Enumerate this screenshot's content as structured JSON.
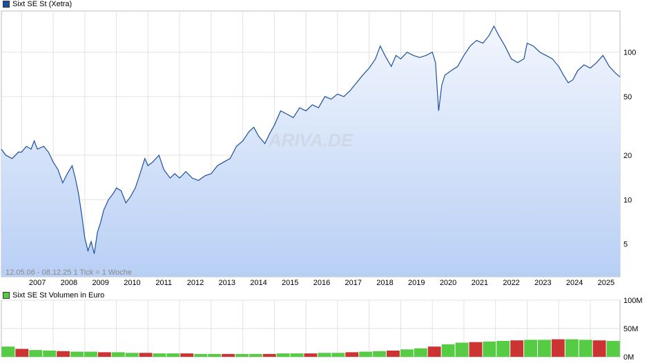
{
  "chart_data": [
    {
      "type": "line",
      "legend": "Sixt SE St (Xetra)",
      "scale": "log",
      "ylim": [
        3,
        190
      ],
      "y_ticks": [
        5,
        10,
        20,
        50,
        100
      ],
      "x_ticks": [
        "2007",
        "2008",
        "2009",
        "2010",
        "2011",
        "2012",
        "2013",
        "2014",
        "2015",
        "2016",
        "2017",
        "2018",
        "2019",
        "2020",
        "2021",
        "2022",
        "2023",
        "2024",
        "2025"
      ],
      "info": "12.05.06 - 08.12.25    1 Tick = 1 Woche",
      "watermark": "ARIVA.DE",
      "line_color": "#1c4fa0",
      "fill_top_color": "#f2f6fd",
      "fill_bottom_color": "#b8cff5",
      "points": [
        [
          2006.36,
          22
        ],
        [
          2006.5,
          20
        ],
        [
          2006.7,
          19
        ],
        [
          2006.9,
          21
        ],
        [
          2007.0,
          21
        ],
        [
          2007.15,
          23
        ],
        [
          2007.3,
          22
        ],
        [
          2007.4,
          25
        ],
        [
          2007.5,
          22
        ],
        [
          2007.7,
          23
        ],
        [
          2007.85,
          21
        ],
        [
          2008.0,
          18
        ],
        [
          2008.15,
          16
        ],
        [
          2008.3,
          13
        ],
        [
          2008.45,
          15
        ],
        [
          2008.6,
          17
        ],
        [
          2008.7,
          14
        ],
        [
          2008.8,
          11
        ],
        [
          2008.9,
          8
        ],
        [
          2009.0,
          5.5
        ],
        [
          2009.1,
          4.5
        ],
        [
          2009.2,
          5.2
        ],
        [
          2009.3,
          4.3
        ],
        [
          2009.4,
          6
        ],
        [
          2009.5,
          7
        ],
        [
          2009.6,
          8.5
        ],
        [
          2009.75,
          10
        ],
        [
          2009.9,
          11
        ],
        [
          2010.0,
          12
        ],
        [
          2010.15,
          11.5
        ],
        [
          2010.3,
          9.5
        ],
        [
          2010.45,
          10.5
        ],
        [
          2010.6,
          12
        ],
        [
          2010.75,
          15
        ],
        [
          2010.9,
          19
        ],
        [
          2011.0,
          17
        ],
        [
          2011.15,
          18
        ],
        [
          2011.35,
          20
        ],
        [
          2011.5,
          16
        ],
        [
          2011.7,
          14
        ],
        [
          2011.85,
          15
        ],
        [
          2012.0,
          14
        ],
        [
          2012.2,
          15.5
        ],
        [
          2012.4,
          14
        ],
        [
          2012.6,
          13.5
        ],
        [
          2012.8,
          14.5
        ],
        [
          2013.0,
          15
        ],
        [
          2013.2,
          17
        ],
        [
          2013.4,
          18
        ],
        [
          2013.6,
          19
        ],
        [
          2013.8,
          23
        ],
        [
          2014.0,
          25
        ],
        [
          2014.2,
          29
        ],
        [
          2014.35,
          31
        ],
        [
          2014.5,
          27
        ],
        [
          2014.7,
          24
        ],
        [
          2014.85,
          28
        ],
        [
          2015.0,
          32
        ],
        [
          2015.2,
          40
        ],
        [
          2015.4,
          38
        ],
        [
          2015.6,
          36
        ],
        [
          2015.8,
          42
        ],
        [
          2016.0,
          40
        ],
        [
          2016.2,
          44
        ],
        [
          2016.4,
          42
        ],
        [
          2016.6,
          50
        ],
        [
          2016.8,
          48
        ],
        [
          2017.0,
          52
        ],
        [
          2017.2,
          50
        ],
        [
          2017.4,
          55
        ],
        [
          2017.6,
          62
        ],
        [
          2017.8,
          70
        ],
        [
          2018.0,
          78
        ],
        [
          2018.2,
          90
        ],
        [
          2018.35,
          110
        ],
        [
          2018.5,
          95
        ],
        [
          2018.7,
          80
        ],
        [
          2018.85,
          95
        ],
        [
          2019.0,
          90
        ],
        [
          2019.2,
          100
        ],
        [
          2019.4,
          95
        ],
        [
          2019.6,
          92
        ],
        [
          2019.8,
          95
        ],
        [
          2020.0,
          100
        ],
        [
          2020.1,
          85
        ],
        [
          2020.2,
          40
        ],
        [
          2020.3,
          60
        ],
        [
          2020.4,
          70
        ],
        [
          2020.6,
          75
        ],
        [
          2020.8,
          80
        ],
        [
          2021.0,
          95
        ],
        [
          2021.2,
          110
        ],
        [
          2021.4,
          120
        ],
        [
          2021.6,
          115
        ],
        [
          2021.8,
          130
        ],
        [
          2021.95,
          150
        ],
        [
          2022.1,
          130
        ],
        [
          2022.3,
          110
        ],
        [
          2022.5,
          90
        ],
        [
          2022.7,
          85
        ],
        [
          2022.9,
          90
        ],
        [
          2023.0,
          115
        ],
        [
          2023.2,
          110
        ],
        [
          2023.4,
          100
        ],
        [
          2023.6,
          95
        ],
        [
          2023.8,
          90
        ],
        [
          2024.0,
          80
        ],
        [
          2024.15,
          70
        ],
        [
          2024.3,
          62
        ],
        [
          2024.45,
          65
        ],
        [
          2024.6,
          75
        ],
        [
          2024.8,
          82
        ],
        [
          2025.0,
          78
        ],
        [
          2025.2,
          85
        ],
        [
          2025.4,
          95
        ],
        [
          2025.6,
          80
        ],
        [
          2025.8,
          72
        ],
        [
          2025.94,
          68
        ]
      ]
    },
    {
      "type": "bar",
      "legend": "Sixt SE St Volumen in Euro",
      "ylim": [
        0,
        100
      ],
      "y_ticks": [
        "100M",
        "50M",
        "0M"
      ],
      "colors": {
        "up": "#55cc44",
        "down": "#cc3333"
      },
      "values": [
        18,
        14,
        12,
        11,
        10,
        9,
        9,
        8,
        8,
        7,
        7,
        6,
        6,
        6,
        5,
        5,
        5,
        5,
        5,
        5,
        6,
        6,
        6,
        7,
        7,
        8,
        9,
        10,
        11,
        13,
        15,
        18,
        22,
        25,
        26,
        27,
        28,
        29,
        30,
        30,
        31,
        31,
        30,
        29,
        28
      ]
    }
  ]
}
